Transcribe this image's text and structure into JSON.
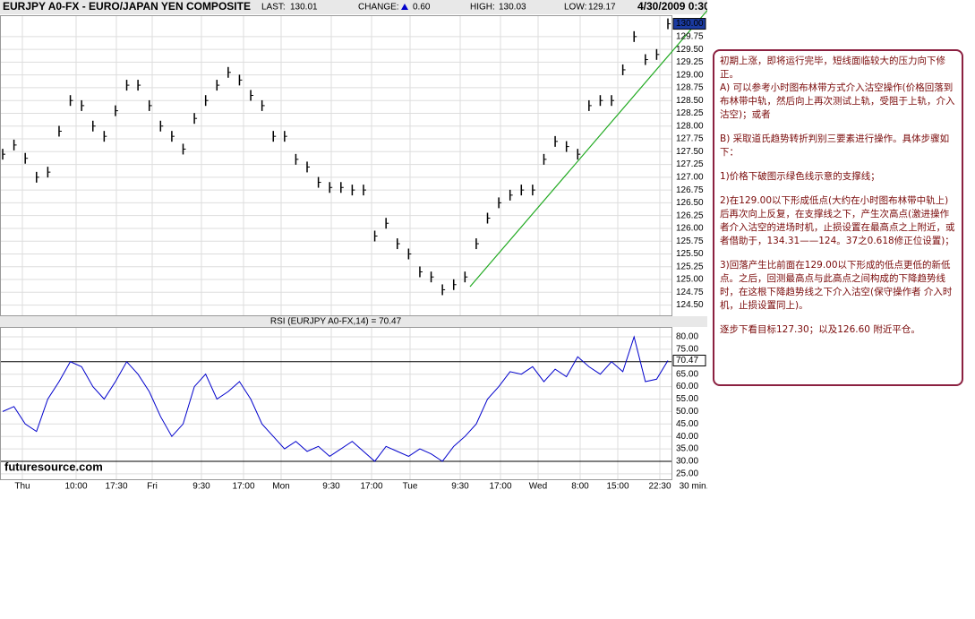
{
  "header": {
    "title": "EURJPY A0-FX - EURO/JAPAN YEN COMPOSITE",
    "last_label": "LAST:",
    "last": "130.01",
    "change_label": "CHANGE:",
    "change": "0.60",
    "high_label": "HIGH:",
    "high": "130.03",
    "low_label": "LOW:",
    "low": "129.17",
    "datetime": "4/30/2009 0:30"
  },
  "x_axis_labels": [
    "Thu",
    "10:00",
    "17:30",
    "Fri",
    "9:30",
    "17:00",
    "Mon",
    "9:30",
    "17:00",
    "Tue",
    "9:30",
    "17:00",
    "Wed",
    "8:00",
    "15:00",
    "22:30",
    "30 min."
  ],
  "watermark": "futuresource.com",
  "chart_data": [
    {
      "type": "price",
      "color": "#000000",
      "values": [
        127.45,
        127.63,
        127.37,
        127.0,
        127.1,
        127.9,
        128.5,
        128.4,
        128.0,
        127.8,
        128.3,
        128.8,
        128.8,
        128.4,
        128.0,
        127.8,
        127.55,
        128.15,
        128.5,
        128.8,
        129.05,
        128.9,
        128.6,
        128.4,
        127.8,
        127.8,
        127.35,
        127.2,
        126.9,
        126.8,
        126.8,
        126.75,
        126.75,
        125.85,
        126.1,
        125.7,
        125.5,
        125.15,
        125.05,
        124.8,
        124.9,
        125.05,
        125.7,
        126.2,
        126.5,
        126.65,
        126.75,
        126.75,
        127.35,
        127.7,
        127.6,
        127.45,
        128.4,
        128.5,
        128.5,
        129.1,
        129.75,
        129.3,
        129.4,
        130.0
      ],
      "ylim": [
        124.3,
        130.15
      ],
      "yticks": [
        {
          "value": 124.5,
          "label": "124.50"
        },
        {
          "value": 124.75,
          "label": "124.75"
        },
        {
          "value": 125,
          "label": "125.00"
        },
        {
          "value": 125.25,
          "label": "125.25"
        },
        {
          "value": 125.5,
          "label": "125.50"
        },
        {
          "value": 125.75,
          "label": "125.75"
        },
        {
          "value": 126,
          "label": "126.00"
        },
        {
          "value": 126.25,
          "label": "126.25"
        },
        {
          "value": 126.5,
          "label": "126.50"
        },
        {
          "value": 126.75,
          "label": "126.75"
        },
        {
          "value": 127,
          "label": "127.00"
        },
        {
          "value": 127.25,
          "label": "127.25"
        },
        {
          "value": 127.5,
          "label": "127.50"
        },
        {
          "value": 127.75,
          "label": "127.75"
        },
        {
          "value": 128,
          "label": "128.00"
        },
        {
          "value": 128.25,
          "label": "128.25"
        },
        {
          "value": 128.5,
          "label": "128.50"
        },
        {
          "value": 128.75,
          "label": "128.75"
        },
        {
          "value": 129,
          "label": "129.00"
        },
        {
          "value": 129.25,
          "label": "129.25"
        },
        {
          "value": 129.5,
          "label": "129.50"
        },
        {
          "value": 129.75,
          "label": "129.75"
        }
      ],
      "marker": {
        "value": 130,
        "label": "130.00"
      }
    },
    {
      "type": "line",
      "title": "RSI (EURJPY A0-FX,14) = 70.47",
      "color": "#0000cc",
      "values": [
        50,
        52,
        45,
        42,
        55,
        62,
        70,
        68,
        60,
        55,
        62,
        70,
        65,
        58,
        48,
        40,
        45,
        60,
        65,
        55,
        58,
        62,
        55,
        45,
        40,
        35,
        38,
        34,
        36,
        32,
        35,
        38,
        34,
        30,
        36,
        34,
        32,
        35,
        33,
        30,
        36,
        40,
        45,
        55,
        60,
        66,
        65,
        68,
        62,
        67,
        64,
        72,
        68,
        65,
        70,
        66,
        80,
        62,
        63,
        70.47
      ],
      "ylim": [
        22.8,
        83.6
      ],
      "yticks": [
        {
          "value": 25,
          "label": "25.00"
        },
        {
          "value": 30,
          "label": "30.00"
        },
        {
          "value": 35,
          "label": "35.00"
        },
        {
          "value": 40,
          "label": "40.00"
        },
        {
          "value": 45,
          "label": "45.00"
        },
        {
          "value": 50,
          "label": "50.00"
        },
        {
          "value": 55,
          "label": "55.00"
        },
        {
          "value": 60,
          "label": "60.00"
        },
        {
          "value": 65,
          "label": "65.00"
        },
        {
          "value": 75,
          "label": "75.00"
        },
        {
          "value": 80,
          "label": "80.00"
        }
      ],
      "levels": [
        30,
        70
      ],
      "marker": {
        "value": 70.47,
        "label": "70.47"
      }
    }
  ],
  "note": [
    "初期上涨，即将运行完毕，短线面临较大的压力向下修正。",
    "A) 可以参考小时图布林带方式介入沽空操作(价格回落到布林带中轨，然后向上再次测试上轨，受阻于上轨，介入沽空)；或者",
    "B) 采取道氏趋势转折判别三要素进行操作。具体步骤如下：",
    "1)价格下破图示绿色线示意的支撑线；",
    "2)在129.00以下形成低点(大约在小时图布林带中轨上)后再次向上反复，在支撑线之下，产生次高点(激进操作者介入沽空的进场时机，止损设置在最高点之上附近，或者借助于，134.31——124。37之0.618修正位设置)；",
    "3)回落产生比前面在129.00以下形成的低点更低的新低点。之后，回测最高点与此高点之间构成的下降趋势线时，在这根下降趋势线之下介入沽空(保守操作者 介入时机，止损设置同上)。",
    "逐步下看目标127.30；以及126.60 附近平仓。"
  ]
}
